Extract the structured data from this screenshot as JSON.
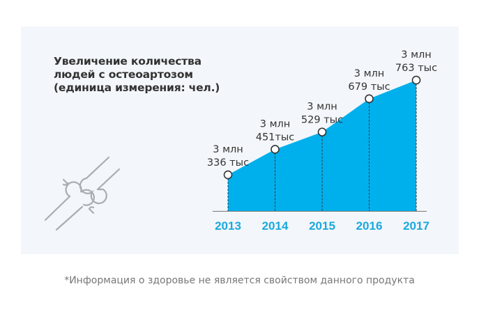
{
  "chart_data": {
    "type": "area",
    "title": "Увеличение количества\nлюдей с остеоартозом\n(единица измерения: чел.)",
    "categories": [
      "2013",
      "2014",
      "2015",
      "2016",
      "2017"
    ],
    "values": [
      3336000,
      3451000,
      3529000,
      3679000,
      3763000
    ],
    "data_labels": [
      [
        "3 млн",
        "336 тыс"
      ],
      [
        "3 млн",
        "451тыс"
      ],
      [
        "3 млн",
        "529 тыс"
      ],
      [
        "3 млн",
        "679 тыс"
      ],
      [
        "3 млн",
        "763 тыс"
      ]
    ],
    "xlabel": "",
    "ylabel": "",
    "grid": false,
    "colors": {
      "fill": "#00b0ec",
      "year_label": "#19a9df",
      "marker": "#ffffff"
    }
  },
  "icon": "joint-bones-icon",
  "footnote": "*Информация о здоровье не является свойством данного продукта"
}
